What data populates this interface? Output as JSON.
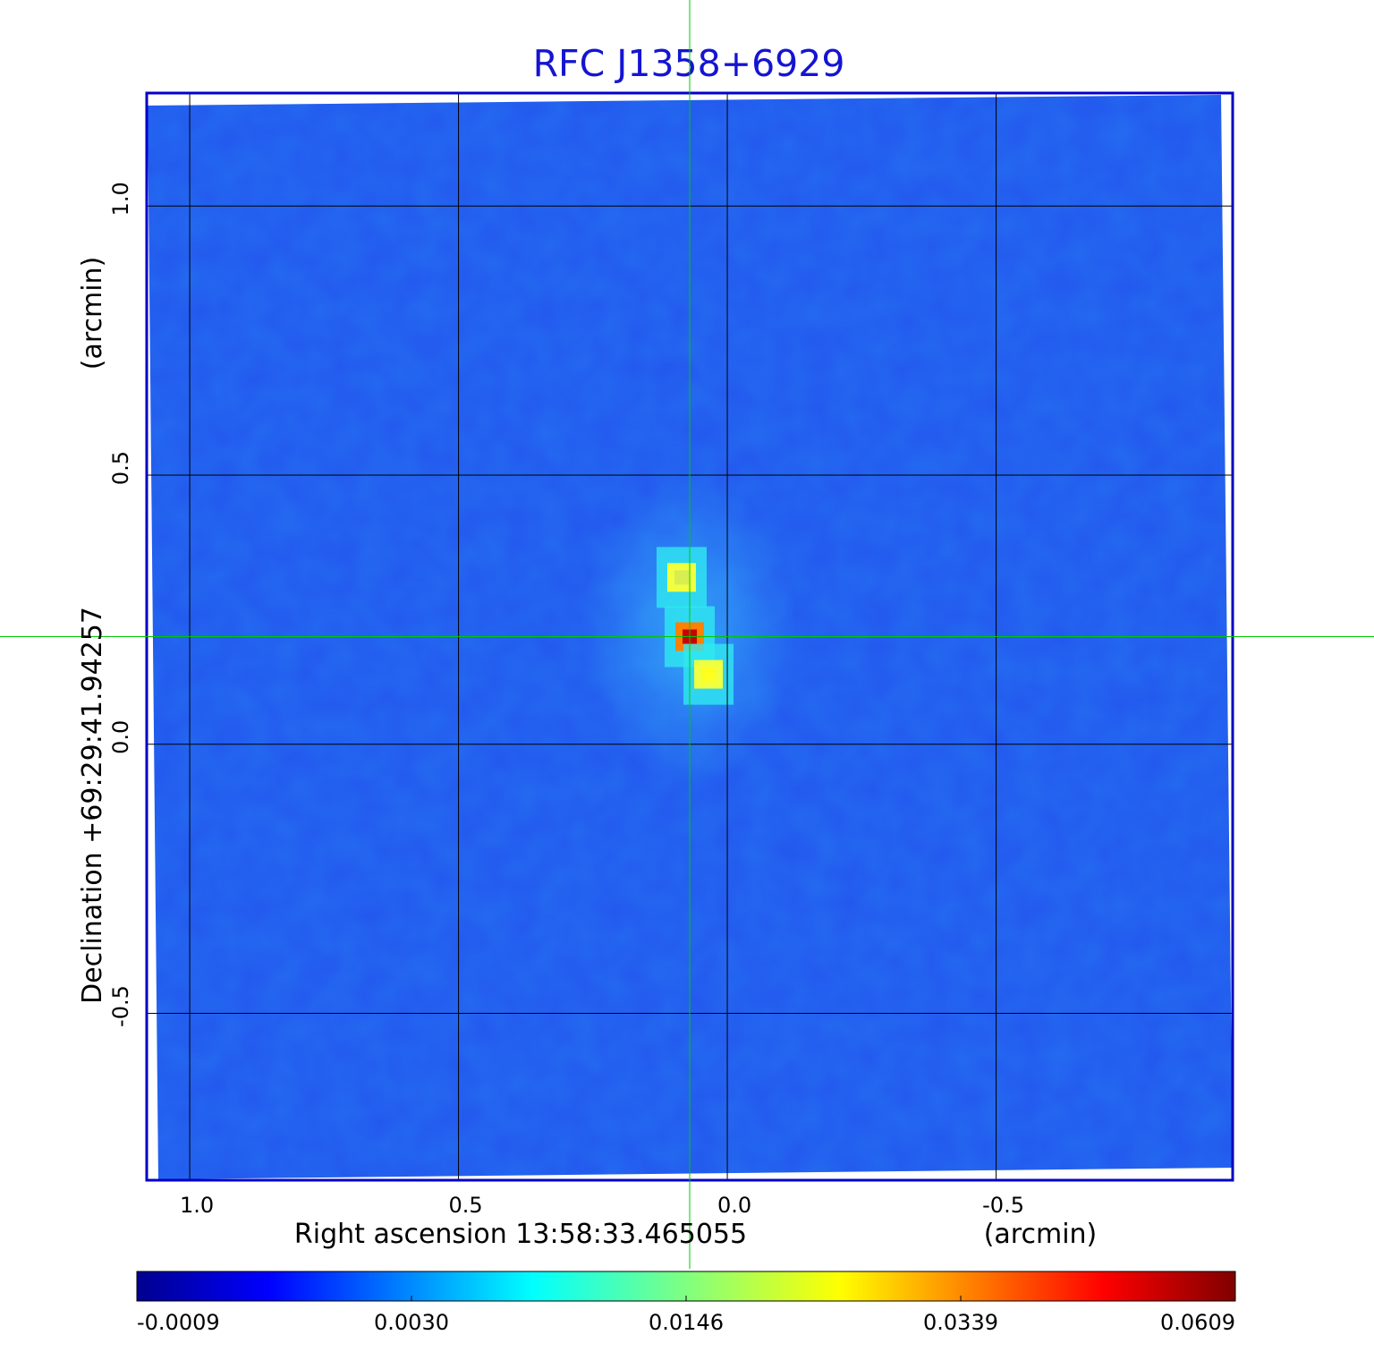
{
  "chart_data": {
    "type": "heatmap",
    "title": "RFC J1358+6929",
    "xlabel": "Right ascension  13:58:33.465055",
    "xunit": "(arcmin)",
    "ylabel": "Declination  +69:29:41.94257",
    "yunit": "(arcmin)",
    "x_ticks": [
      {
        "value": 1.0,
        "label": "1.0"
      },
      {
        "value": 0.5,
        "label": "0.5"
      },
      {
        "value": 0.0,
        "label": "0.0"
      },
      {
        "value": -0.5,
        "label": "-0.5"
      }
    ],
    "y_ticks": [
      {
        "value": 1.0,
        "label": "1.0"
      },
      {
        "value": 0.5,
        "label": "0.5"
      },
      {
        "value": 0.0,
        "label": "0.0"
      },
      {
        "value": -0.5,
        "label": "-0.5"
      }
    ],
    "xlim": [
      1.08,
      -0.94
    ],
    "ylim": [
      -0.81,
      1.21
    ],
    "grid": true,
    "colormap": "jet",
    "crosshair": {
      "x": 0.07,
      "y": 0.2
    },
    "colorbar": {
      "ticks": [
        "-0.0009",
        "0.0030",
        "0.0146",
        "0.0339",
        "0.0609"
      ]
    },
    "sources": [
      {
        "x": 0.07,
        "y": 0.2,
        "value": 0.0609
      },
      {
        "x": 0.035,
        "y": 0.13,
        "value": 0.033
      },
      {
        "x": 0.085,
        "y": 0.31,
        "value": 0.022
      }
    ]
  },
  "colors": {
    "title": "#1414d2",
    "frame": "#0000c8",
    "background_field": "#2255ee",
    "crosshair": "#00c800",
    "grid": "#000000"
  }
}
